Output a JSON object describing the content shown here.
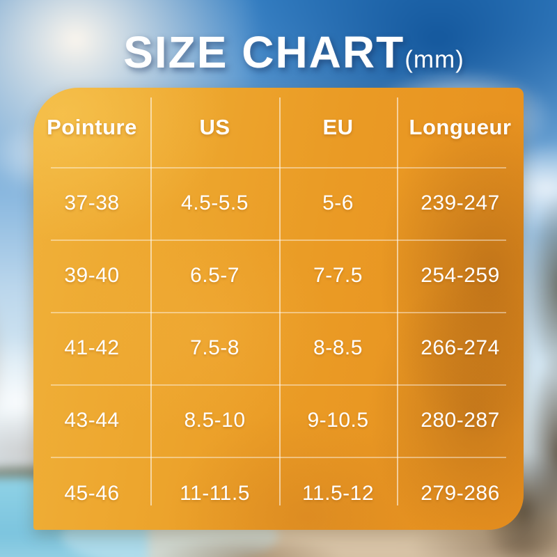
{
  "title": {
    "main": "SIZE CHART",
    "unit": "(mm)"
  },
  "table": {
    "headers": [
      "Pointure",
      "US",
      "EU",
      "Longueur"
    ],
    "rows": [
      [
        "37-38",
        "4.5-5.5",
        "5-6",
        "239-247"
      ],
      [
        "39-40",
        "6.5-7",
        "7-7.5",
        "254-259"
      ],
      [
        "41-42",
        "7.5-8",
        "8-8.5",
        "266-274"
      ],
      [
        "43-44",
        "8.5-10",
        "9-10.5",
        "280-287"
      ],
      [
        "45-46",
        "11-11.5",
        "11.5-12",
        "279-286"
      ]
    ]
  },
  "chart_data": {
    "type": "table",
    "title": "SIZE CHART (mm)",
    "columns": [
      "Pointure",
      "US",
      "EU",
      "Longueur"
    ],
    "rows": [
      [
        "37-38",
        "4.5-5.5",
        "5-6",
        "239-247"
      ],
      [
        "39-40",
        "6.5-7",
        "7-7.5",
        "254-259"
      ],
      [
        "41-42",
        "7.5-8",
        "8-8.5",
        "266-274"
      ],
      [
        "43-44",
        "8.5-10",
        "9-10.5",
        "280-287"
      ],
      [
        "45-46",
        "11-11.5",
        "11.5-12",
        "279-286"
      ]
    ]
  },
  "colors": {
    "title_text": "#ffffff",
    "table_orange_light": "#f0b13a",
    "table_orange_deep": "#e78f1e",
    "cell_text": "#ffffff",
    "divider": "rgba(255,255,255,0.5)",
    "sky_deep_blue": "#2e7abf",
    "water_turquoise": "#7cc4de",
    "sand": "#d2bc9e"
  }
}
